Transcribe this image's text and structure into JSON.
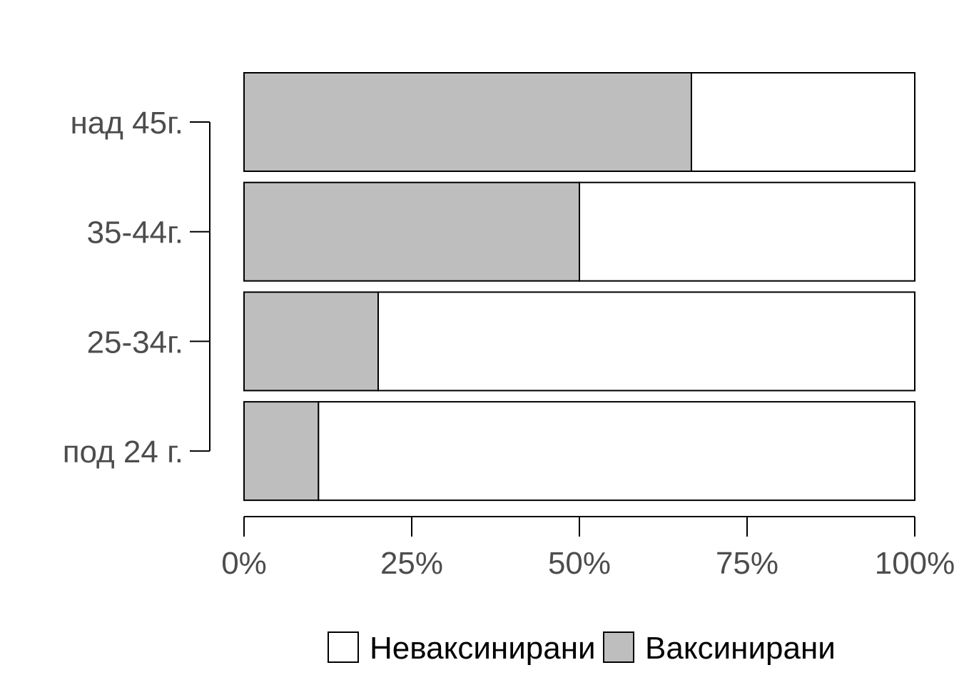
{
  "chart_data": {
    "type": "bar",
    "orientation": "horizontal",
    "stacked": true,
    "percent": true,
    "categories": [
      "над 45г.",
      "35-44г.",
      "25-34г.",
      "под 24 г."
    ],
    "series": [
      {
        "name": "Ваксинирани",
        "color": "#bebebe",
        "values": [
          66.7,
          50.0,
          20.0,
          11.1
        ]
      },
      {
        "name": "Неваксинирани",
        "color": "#ffffff",
        "values": [
          33.3,
          50.0,
          80.0,
          88.9
        ]
      }
    ],
    "xlim": [
      0,
      100
    ],
    "xticks": [
      0,
      25,
      50,
      75,
      100
    ],
    "xtick_labels": [
      "0%",
      "25%",
      "50%",
      "75%",
      "100%"
    ],
    "title": "",
    "xlabel": "",
    "ylabel": "",
    "grid": false,
    "legend": {
      "position": "bottom",
      "entries": [
        {
          "label": "Неваксинирани",
          "color": "#ffffff"
        },
        {
          "label": "Ваксинирани",
          "color": "#bebebe"
        }
      ]
    }
  }
}
